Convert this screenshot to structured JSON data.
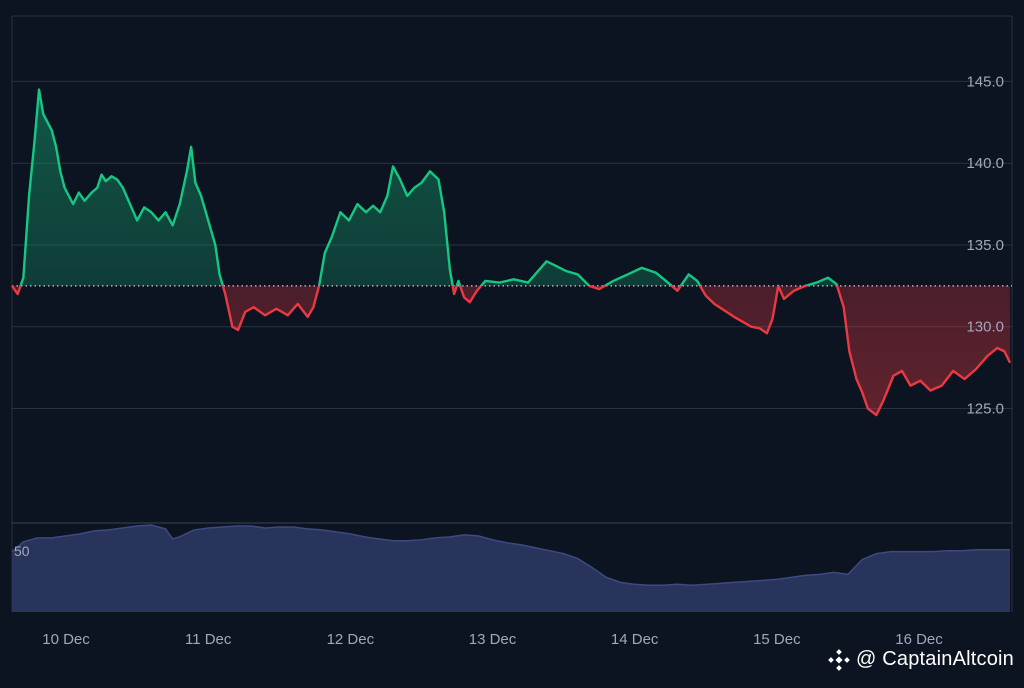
{
  "chart_data": {
    "type": "area",
    "baseline": 132.5,
    "ylim": [
      118,
      149
    ],
    "y_ticks": [
      "145.0",
      "140.0",
      "135.0",
      "130.0",
      "125.0"
    ],
    "y_tick_values": [
      145,
      140,
      135,
      130,
      125
    ],
    "x_ticks": [
      "10 Dec",
      "11 Dec",
      "12 Dec",
      "13 Dec",
      "14 Dec",
      "15 Dec",
      "16 Dec"
    ],
    "x_tick_values": [
      0,
      1,
      2,
      3,
      4,
      5,
      6
    ],
    "x_range": [
      -0.38,
      6.64
    ],
    "colors": {
      "up": "#16c784",
      "down": "#ea3943",
      "volume": "#2b3660",
      "grid": "#2a3040",
      "tick": "#a1a7bb"
    },
    "series": [
      {
        "values": [
          [
            -0.38,
            132.5
          ],
          [
            -0.34,
            132.0
          ],
          [
            -0.3,
            133.0
          ],
          [
            -0.26,
            138.0
          ],
          [
            -0.22,
            141.5
          ],
          [
            -0.19,
            144.5
          ],
          [
            -0.16,
            143.0
          ],
          [
            -0.13,
            142.5
          ],
          [
            -0.1,
            142.0
          ],
          [
            -0.07,
            141.0
          ],
          [
            -0.04,
            139.5
          ],
          [
            -0.01,
            138.5
          ],
          [
            0.02,
            138.0
          ],
          [
            0.05,
            137.5
          ],
          [
            0.09,
            138.2
          ],
          [
            0.13,
            137.7
          ],
          [
            0.18,
            138.2
          ],
          [
            0.22,
            138.5
          ],
          [
            0.25,
            139.3
          ],
          [
            0.28,
            138.9
          ],
          [
            0.32,
            139.2
          ],
          [
            0.36,
            139.0
          ],
          [
            0.4,
            138.5
          ],
          [
            0.45,
            137.5
          ],
          [
            0.5,
            136.5
          ],
          [
            0.55,
            137.3
          ],
          [
            0.6,
            137.0
          ],
          [
            0.65,
            136.5
          ],
          [
            0.7,
            137.0
          ],
          [
            0.75,
            136.2
          ],
          [
            0.8,
            137.5
          ],
          [
            0.85,
            139.5
          ],
          [
            0.88,
            141.0
          ],
          [
            0.91,
            138.8
          ],
          [
            0.95,
            138.0
          ],
          [
            1.0,
            136.5
          ],
          [
            1.05,
            135.0
          ],
          [
            1.08,
            133.2
          ],
          [
            1.12,
            132.0
          ],
          [
            1.17,
            130.0
          ],
          [
            1.21,
            129.8
          ],
          [
            1.26,
            130.9
          ],
          [
            1.32,
            131.2
          ],
          [
            1.4,
            130.7
          ],
          [
            1.48,
            131.1
          ],
          [
            1.56,
            130.7
          ],
          [
            1.63,
            131.4
          ],
          [
            1.7,
            130.6
          ],
          [
            1.74,
            131.2
          ],
          [
            1.78,
            132.5
          ],
          [
            1.82,
            134.5
          ],
          [
            1.87,
            135.5
          ],
          [
            1.93,
            137.0
          ],
          [
            1.99,
            136.5
          ],
          [
            2.05,
            137.5
          ],
          [
            2.11,
            137.0
          ],
          [
            2.16,
            137.4
          ],
          [
            2.21,
            137.0
          ],
          [
            2.26,
            138.0
          ],
          [
            2.3,
            139.8
          ],
          [
            2.35,
            139.0
          ],
          [
            2.4,
            138.0
          ],
          [
            2.45,
            138.5
          ],
          [
            2.5,
            138.8
          ],
          [
            2.56,
            139.5
          ],
          [
            2.62,
            139.0
          ],
          [
            2.66,
            137.0
          ],
          [
            2.7,
            133.5
          ],
          [
            2.73,
            132.0
          ],
          [
            2.76,
            132.8
          ],
          [
            2.8,
            131.8
          ],
          [
            2.84,
            131.5
          ],
          [
            2.89,
            132.2
          ],
          [
            2.95,
            132.8
          ],
          [
            3.05,
            132.7
          ],
          [
            3.15,
            132.9
          ],
          [
            3.25,
            132.7
          ],
          [
            3.32,
            133.4
          ],
          [
            3.38,
            134.0
          ],
          [
            3.45,
            133.7
          ],
          [
            3.52,
            133.4
          ],
          [
            3.6,
            133.2
          ],
          [
            3.68,
            132.5
          ],
          [
            3.75,
            132.3
          ],
          [
            3.85,
            132.8
          ],
          [
            3.95,
            133.2
          ],
          [
            4.05,
            133.6
          ],
          [
            4.15,
            133.3
          ],
          [
            4.22,
            132.8
          ],
          [
            4.3,
            132.2
          ],
          [
            4.38,
            133.2
          ],
          [
            4.44,
            132.8
          ],
          [
            4.5,
            131.9
          ],
          [
            4.56,
            131.4
          ],
          [
            4.63,
            131.0
          ],
          [
            4.7,
            130.6
          ],
          [
            4.76,
            130.3
          ],
          [
            4.82,
            130.0
          ],
          [
            4.88,
            129.9
          ],
          [
            4.93,
            129.6
          ],
          [
            4.97,
            130.5
          ],
          [
            5.01,
            132.5
          ],
          [
            5.05,
            131.7
          ],
          [
            5.12,
            132.2
          ],
          [
            5.2,
            132.5
          ],
          [
            5.28,
            132.7
          ],
          [
            5.36,
            133.0
          ],
          [
            5.42,
            132.6
          ],
          [
            5.47,
            131.2
          ],
          [
            5.51,
            128.5
          ],
          [
            5.56,
            126.8
          ],
          [
            5.6,
            126.0
          ],
          [
            5.64,
            125.0
          ],
          [
            5.7,
            124.6
          ],
          [
            5.75,
            125.5
          ],
          [
            5.82,
            127.0
          ],
          [
            5.88,
            127.3
          ],
          [
            5.94,
            126.4
          ],
          [
            6.01,
            126.7
          ],
          [
            6.08,
            126.1
          ],
          [
            6.16,
            126.4
          ],
          [
            6.24,
            127.3
          ],
          [
            6.32,
            126.8
          ],
          [
            6.4,
            127.4
          ],
          [
            6.48,
            128.2
          ],
          [
            6.55,
            128.7
          ],
          [
            6.6,
            128.5
          ],
          [
            6.64,
            127.8
          ]
        ]
      }
    ],
    "volume": {
      "axis_label": "50",
      "values": [
        [
          -0.38,
          61
        ],
        [
          -0.3,
          71
        ],
        [
          -0.2,
          75
        ],
        [
          -0.1,
          75
        ],
        [
          0.0,
          77
        ],
        [
          0.1,
          79
        ],
        [
          0.2,
          82
        ],
        [
          0.3,
          83
        ],
        [
          0.4,
          85
        ],
        [
          0.5,
          87
        ],
        [
          0.6,
          88
        ],
        [
          0.7,
          84
        ],
        [
          0.75,
          74
        ],
        [
          0.8,
          76
        ],
        [
          0.9,
          83
        ],
        [
          1.0,
          85
        ],
        [
          1.1,
          86
        ],
        [
          1.2,
          87
        ],
        [
          1.3,
          87
        ],
        [
          1.4,
          85
        ],
        [
          1.5,
          86
        ],
        [
          1.6,
          86
        ],
        [
          1.7,
          84
        ],
        [
          1.8,
          83
        ],
        [
          1.9,
          81
        ],
        [
          2.0,
          79
        ],
        [
          2.1,
          76
        ],
        [
          2.2,
          74
        ],
        [
          2.3,
          72
        ],
        [
          2.4,
          72
        ],
        [
          2.5,
          73
        ],
        [
          2.6,
          75
        ],
        [
          2.7,
          76
        ],
        [
          2.8,
          78
        ],
        [
          2.9,
          77
        ],
        [
          3.0,
          73
        ],
        [
          3.1,
          70
        ],
        [
          3.2,
          68
        ],
        [
          3.3,
          65
        ],
        [
          3.4,
          62
        ],
        [
          3.5,
          59
        ],
        [
          3.6,
          54
        ],
        [
          3.7,
          45
        ],
        [
          3.8,
          35
        ],
        [
          3.9,
          30
        ],
        [
          4.0,
          28
        ],
        [
          4.1,
          27
        ],
        [
          4.2,
          27
        ],
        [
          4.3,
          28
        ],
        [
          4.4,
          27
        ],
        [
          4.5,
          28
        ],
        [
          4.6,
          29
        ],
        [
          4.7,
          30
        ],
        [
          4.8,
          31
        ],
        [
          4.9,
          32
        ],
        [
          5.0,
          33
        ],
        [
          5.1,
          35
        ],
        [
          5.2,
          37
        ],
        [
          5.3,
          38
        ],
        [
          5.4,
          40
        ],
        [
          5.5,
          38
        ],
        [
          5.6,
          53
        ],
        [
          5.7,
          59
        ],
        [
          5.8,
          61
        ],
        [
          5.9,
          61
        ],
        [
          6.0,
          61
        ],
        [
          6.1,
          61
        ],
        [
          6.2,
          62
        ],
        [
          6.3,
          62
        ],
        [
          6.4,
          63
        ],
        [
          6.5,
          63
        ],
        [
          6.6,
          63
        ],
        [
          6.64,
          63
        ]
      ],
      "max": 90
    }
  },
  "watermark": {
    "text": "@ CaptainAltcoin",
    "icon": "diamond-logo-icon"
  }
}
